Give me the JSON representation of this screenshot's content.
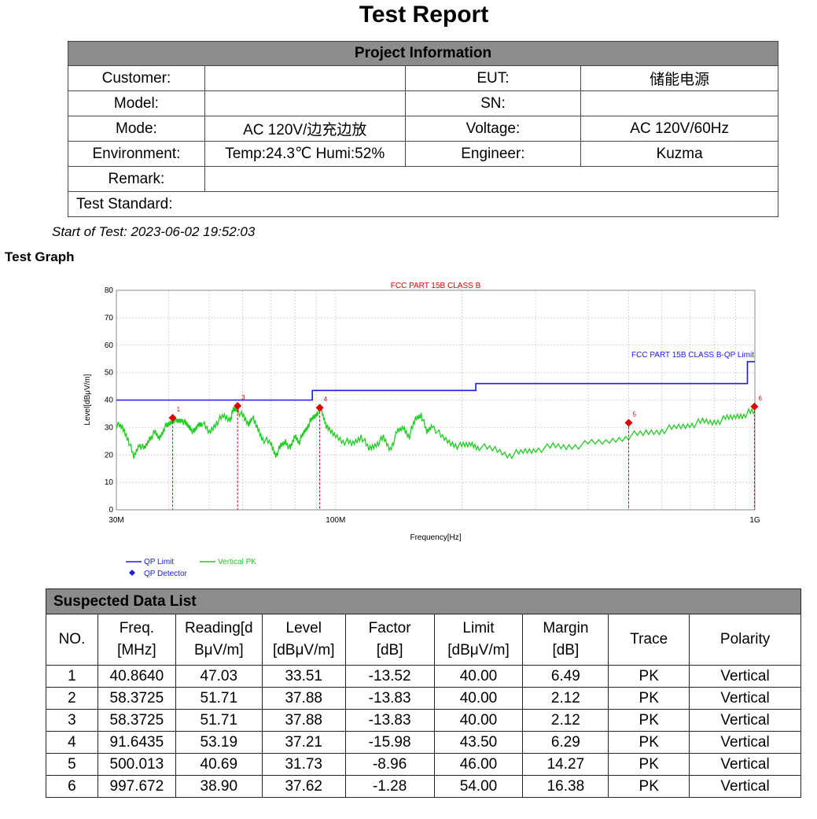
{
  "report_title": "Test Report",
  "project": {
    "header": "Project Information",
    "customer_label": "Customer:",
    "customer_value": "",
    "eut_label": "EUT:",
    "eut_value": "储能电源",
    "model_label": "Model:",
    "model_value": "",
    "sn_label": "SN:",
    "sn_value": "",
    "mode_label": "Mode:",
    "mode_value": "AC 120V/边充边放",
    "voltage_label": "Voltage:",
    "voltage_value": "AC 120V/60Hz",
    "environment_label": "Environment:",
    "environment_value": "Temp:24.3℃  Humi:52%",
    "engineer_label": "Engineer:",
    "engineer_value": "Kuzma",
    "remark_label": "Remark:",
    "remark_value": "",
    "standard_label": "Test Standard:"
  },
  "start_of_test": "Start of Test: 2023-06-02 19:52:03",
  "graph_heading": "Test Graph",
  "chart_data": {
    "type": "line",
    "title": "FCC PART 15B CLASS B",
    "xlabel": "Frequency[Hz]",
    "ylabel": "Level[dBμV/m]",
    "x_scale": "log",
    "xlim": [
      30,
      1000
    ],
    "ylim": [
      0,
      80
    ],
    "grid": true,
    "y_ticks": [
      "0",
      "10",
      "20",
      "30",
      "40",
      "50",
      "60",
      "70",
      "80"
    ],
    "x_tick_labels": [
      {
        "value": 30,
        "label": "30M"
      },
      {
        "value": 100,
        "label": "100M"
      },
      {
        "value": 1000,
        "label": "1G"
      }
    ],
    "limit_label": "FCC PART 15B CLASS B-QP Limit",
    "limit_line": [
      [
        30,
        40
      ],
      [
        88,
        40
      ],
      [
        88,
        43.5
      ],
      [
        216,
        43.5
      ],
      [
        216,
        46
      ],
      [
        960,
        46
      ],
      [
        960,
        54
      ],
      [
        1000,
        54
      ]
    ],
    "series": [
      {
        "name": "Vertical PK",
        "color": "#22cc22",
        "points": [
          [
            30,
            31
          ],
          [
            31,
            30
          ],
          [
            32,
            26
          ],
          [
            33,
            19
          ],
          [
            34,
            24
          ],
          [
            35,
            22
          ],
          [
            36,
            26
          ],
          [
            37,
            28
          ],
          [
            38,
            26
          ],
          [
            39,
            30
          ],
          [
            40,
            31
          ],
          [
            41,
            33
          ],
          [
            42,
            32
          ],
          [
            43,
            33
          ],
          [
            44,
            31
          ],
          [
            45,
            30
          ],
          [
            46,
            28
          ],
          [
            47,
            31
          ],
          [
            48,
            32
          ],
          [
            50,
            28
          ],
          [
            52,
            32
          ],
          [
            54,
            34
          ],
          [
            56,
            33
          ],
          [
            57,
            36
          ],
          [
            58,
            37
          ],
          [
            60,
            34
          ],
          [
            62,
            31
          ],
          [
            63,
            34
          ],
          [
            65,
            30
          ],
          [
            67,
            26
          ],
          [
            70,
            24
          ],
          [
            72,
            20
          ],
          [
            74,
            23
          ],
          [
            76,
            25
          ],
          [
            78,
            22
          ],
          [
            80,
            27
          ],
          [
            82,
            25
          ],
          [
            84,
            28
          ],
          [
            86,
            31
          ],
          [
            88,
            33
          ],
          [
            90,
            35
          ],
          [
            92,
            37
          ],
          [
            94,
            33
          ],
          [
            96,
            29
          ],
          [
            100,
            27
          ],
          [
            105,
            25
          ],
          [
            110,
            24
          ],
          [
            115,
            27
          ],
          [
            120,
            22
          ],
          [
            125,
            24
          ],
          [
            130,
            26
          ],
          [
            135,
            22
          ],
          [
            140,
            28
          ],
          [
            145,
            30
          ],
          [
            150,
            27
          ],
          [
            155,
            33
          ],
          [
            160,
            35
          ],
          [
            165,
            28
          ],
          [
            170,
            31
          ],
          [
            180,
            26
          ],
          [
            190,
            24
          ],
          [
            200,
            23
          ],
          [
            210,
            24
          ],
          [
            220,
            23
          ],
          [
            240,
            22
          ],
          [
            260,
            20
          ],
          [
            280,
            21
          ],
          [
            300,
            22
          ],
          [
            330,
            23
          ],
          [
            360,
            23
          ],
          [
            400,
            24
          ],
          [
            450,
            25
          ],
          [
            500,
            27
          ],
          [
            550,
            28
          ],
          [
            600,
            29
          ],
          [
            650,
            30
          ],
          [
            700,
            31
          ],
          [
            750,
            32
          ],
          [
            800,
            32
          ],
          [
            850,
            33
          ],
          [
            900,
            34
          ],
          [
            950,
            35
          ],
          [
            1000,
            36
          ]
        ]
      }
    ],
    "qp_markers": [
      {
        "no": "1",
        "x": 40.864,
        "y": 33.51
      },
      {
        "no": "3",
        "x": 58.3725,
        "y": 37.88
      },
      {
        "no": "4",
        "x": 91.6435,
        "y": 37.21
      },
      {
        "no": "5",
        "x": 500.013,
        "y": 31.73
      },
      {
        "no": "6",
        "x": 997.672,
        "y": 37.62
      }
    ],
    "legend": [
      {
        "name": "QP Limit",
        "color": "#1a1aee"
      },
      {
        "name": "Vertical PK",
        "color": "#22cc22"
      },
      {
        "name": "QP Detector",
        "color": "#1a1aee"
      }
    ],
    "colors": {
      "limit": "#1a1aee",
      "trace": "#22cc22",
      "marker": "#e00000",
      "title": "#e00000"
    }
  },
  "data_list": {
    "header": "Suspected Data List",
    "columns": [
      [
        "NO."
      ],
      [
        "Freq.",
        "[MHz]"
      ],
      [
        "Reading[d",
        "BμV/m]"
      ],
      [
        "Level",
        "[dBμV/m]"
      ],
      [
        "Factor",
        "[dB]"
      ],
      [
        "Limit",
        "[dBμV/m]"
      ],
      [
        "Margin",
        "[dB]"
      ],
      [
        "Trace"
      ],
      [
        "Polarity"
      ]
    ],
    "rows": [
      [
        "1",
        "40.8640",
        "47.03",
        "33.51",
        "-13.52",
        "40.00",
        "6.49",
        "PK",
        "Vertical"
      ],
      [
        "2",
        "58.3725",
        "51.71",
        "37.88",
        "-13.83",
        "40.00",
        "2.12",
        "PK",
        "Vertical"
      ],
      [
        "3",
        "58.3725",
        "51.71",
        "37.88",
        "-13.83",
        "40.00",
        "2.12",
        "PK",
        "Vertical"
      ],
      [
        "4",
        "91.6435",
        "53.19",
        "37.21",
        "-15.98",
        "43.50",
        "6.29",
        "PK",
        "Vertical"
      ],
      [
        "5",
        "500.013",
        "40.69",
        "31.73",
        "-8.96",
        "46.00",
        "14.27",
        "PK",
        "Vertical"
      ],
      [
        "6",
        "997.672",
        "38.90",
        "37.62",
        "-1.28",
        "54.00",
        "16.38",
        "PK",
        "Vertical"
      ]
    ]
  }
}
